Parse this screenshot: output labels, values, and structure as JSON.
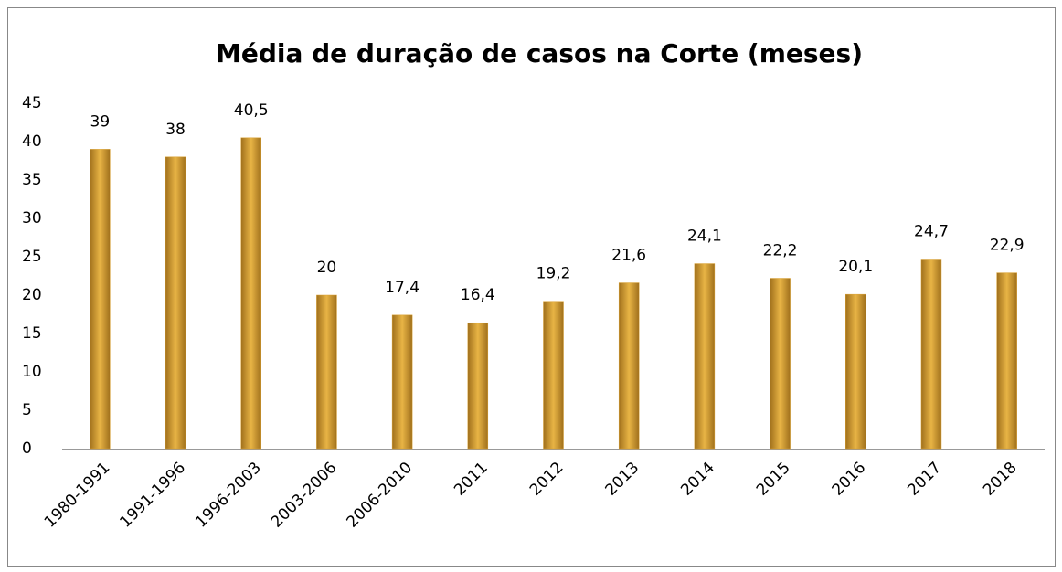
{
  "chart_data": {
    "type": "bar",
    "title": "Média de duração de casos na Corte (meses)",
    "categories": [
      "1980-1991",
      "1991-1996",
      "1996-2003",
      "2003-2006",
      "2006-2010",
      "2011",
      "2012",
      "2013",
      "2014",
      "2015",
      "2016",
      "2017",
      "2018"
    ],
    "values": [
      39,
      38,
      40.5,
      20,
      17.4,
      16.4,
      19.2,
      21.6,
      24.1,
      22.2,
      20.1,
      24.7,
      22.9
    ],
    "value_labels": [
      "39",
      "38",
      "40,5",
      "20",
      "17,4",
      "16,4",
      "19,2",
      "21,6",
      "24,1",
      "22,2",
      "20,1",
      "24,7",
      "22,9"
    ],
    "color": "#d9a032",
    "ylim": [
      0,
      45
    ],
    "yticks": [
      0,
      5,
      10,
      15,
      20,
      25,
      30,
      35,
      40,
      45
    ],
    "grid": false
  }
}
